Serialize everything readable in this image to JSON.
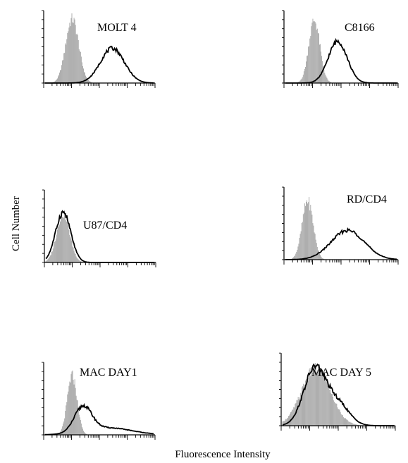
{
  "figure": {
    "ylabel": "Cell Number",
    "xlabel": "Fluorescence Intensity"
  },
  "chart_data": [
    {
      "type": "area",
      "title": "MOLT 4",
      "xlim": [
        0,
        1
      ],
      "series": [
        {
          "style": "shaded",
          "peaks": [
            {
              "x": 0.25,
              "height": 0.92,
              "width": 0.06
            }
          ]
        },
        {
          "style": "outline",
          "peaks": [
            {
              "x": 0.62,
              "height": 0.5,
              "width": 0.11
            }
          ]
        }
      ]
    },
    {
      "type": "area",
      "title": "C8166",
      "xlim": [
        0,
        1
      ],
      "series": [
        {
          "style": "shaded",
          "peaks": [
            {
              "x": 0.26,
              "height": 0.9,
              "width": 0.05
            }
          ]
        },
        {
          "style": "outline",
          "peaks": [
            {
              "x": 0.47,
              "height": 0.6,
              "width": 0.085
            }
          ]
        }
      ]
    },
    {
      "type": "area",
      "title": "U87/CD4",
      "xlim": [
        0,
        1
      ],
      "series": [
        {
          "style": "shaded",
          "peaks": [
            {
              "x": 0.16,
              "height": 0.7,
              "width": 0.06
            }
          ]
        },
        {
          "style": "outline",
          "peaks": [
            {
              "x": 0.16,
              "height": 0.72,
              "width": 0.07
            }
          ]
        }
      ]
    },
    {
      "type": "area",
      "title": "RD/CD4",
      "xlim": [
        0,
        1
      ],
      "series": [
        {
          "style": "shaded",
          "peaks": [
            {
              "x": 0.2,
              "height": 0.85,
              "width": 0.05
            }
          ]
        },
        {
          "style": "outline",
          "peaks": [
            {
              "x": 0.56,
              "height": 0.42,
              "width": 0.15
            }
          ]
        }
      ]
    },
    {
      "type": "area",
      "title": "MAC DAY1",
      "xlim": [
        0,
        1
      ],
      "series": [
        {
          "style": "shaded",
          "peaks": [
            {
              "x": 0.25,
              "height": 0.85,
              "width": 0.045
            }
          ]
        },
        {
          "style": "outline",
          "peaks": [
            {
              "x": 0.35,
              "height": 0.36,
              "width": 0.08
            },
            {
              "x": 0.58,
              "height": 0.1,
              "width": 0.22
            }
          ]
        }
      ]
    },
    {
      "type": "area",
      "title": "MAC DAY 5",
      "xlim": [
        0,
        1
      ],
      "series": [
        {
          "style": "shaded",
          "peaks": [
            {
              "x": 0.3,
              "height": 0.82,
              "width": 0.13
            }
          ]
        },
        {
          "style": "outline",
          "peaks": [
            {
              "x": 0.29,
              "height": 0.82,
              "width": 0.1
            },
            {
              "x": 0.5,
              "height": 0.3,
              "width": 0.1
            }
          ]
        }
      ]
    }
  ]
}
